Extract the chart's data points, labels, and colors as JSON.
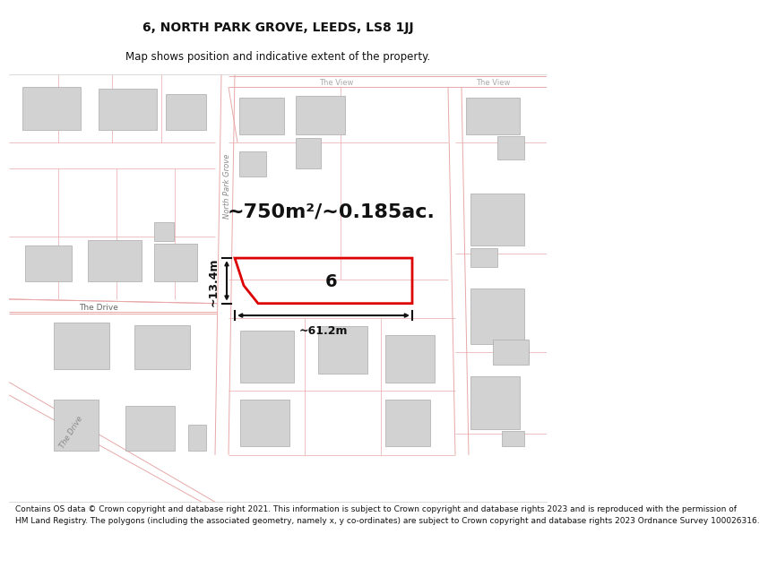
{
  "title": "6, NORTH PARK GROVE, LEEDS, LS8 1JJ",
  "subtitle": "Map shows position and indicative extent of the property.",
  "footer_line1": "Contains OS data © Crown copyright and database right 2021. This information is subject to Crown copyright and database rights 2023 and is reproduced with the permission of",
  "footer_line2": "HM Land Registry. The polygons (including the associated geometry, namely x, y co-ordinates) are subject to Crown copyright and database rights 2023 Ordnance Survey 100026316.",
  "map_bg": "#f0eeea",
  "building_color": "#d2d2d2",
  "building_edge": "#aaaaaa",
  "property_color": "#dd0000",
  "dim_color": "#111111",
  "road_line_color": "#e8a8a8",
  "road_label_color": "#888888",
  "text_road_label": "#999999",
  "area_text": "~750m²/~0.185ac.",
  "width_label": "~61.2m",
  "height_label": "~13.4m",
  "property_number": "6",
  "label_north_park": "North Park Grove",
  "label_the_drive": "The Drive",
  "label_the_view_1": "The View",
  "label_the_view_2": "The View",
  "label_the_drive2": "The Drive",
  "title_fontsize": 10,
  "subtitle_fontsize": 8.5,
  "footer_fontsize": 6.5,
  "area_fontsize": 16,
  "dim_fontsize": 9,
  "prop_num_fontsize": 14,
  "road_label_fontsize": 6
}
